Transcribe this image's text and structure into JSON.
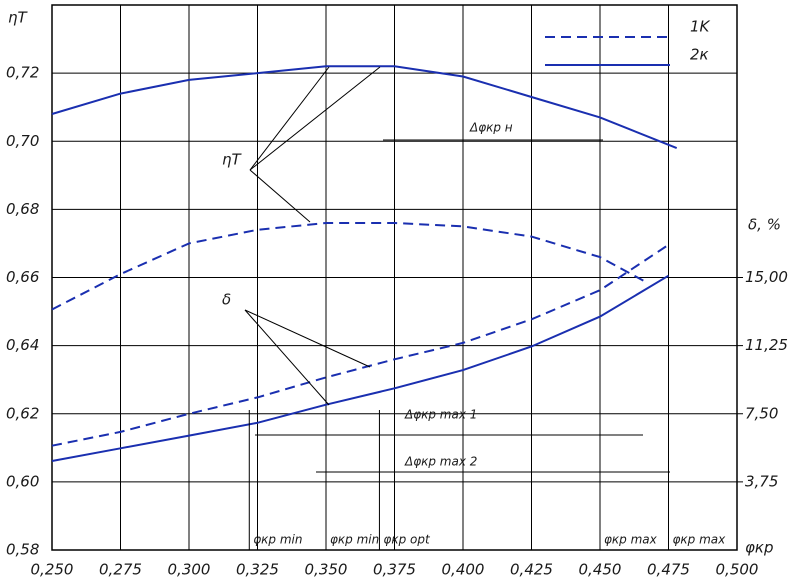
{
  "chart_data": {
    "type": "line",
    "y_title": "ηT",
    "x_title": "φкр",
    "y2_title": "δ, %",
    "xlim": [
      0.25,
      0.5
    ],
    "xticks": [
      {
        "value": 0.25,
        "label": "0,250"
      },
      {
        "value": 0.275,
        "label": "0,275"
      },
      {
        "value": 0.3,
        "label": "0,300"
      },
      {
        "value": 0.325,
        "label": "0,325"
      },
      {
        "value": 0.35,
        "label": "0,350"
      },
      {
        "value": 0.375,
        "label": "0,375"
      },
      {
        "value": 0.4,
        "label": "0,400"
      },
      {
        "value": 0.425,
        "label": "0,425"
      },
      {
        "value": 0.45,
        "label": "0,450"
      },
      {
        "value": 0.475,
        "label": "0,475"
      },
      {
        "value": 0.5,
        "label": "0,500"
      }
    ],
    "ylim": [
      0.58,
      0.74
    ],
    "yticks": [
      {
        "value": 0.58,
        "label": "0,58"
      },
      {
        "value": 0.6,
        "label": "0,60"
      },
      {
        "value": 0.62,
        "label": "0,62"
      },
      {
        "value": 0.64,
        "label": "0,64"
      },
      {
        "value": 0.66,
        "label": "0,66"
      },
      {
        "value": 0.68,
        "label": "0,68"
      },
      {
        "value": 0.7,
        "label": "0,70"
      },
      {
        "value": 0.72,
        "label": "0,72"
      }
    ],
    "y2lim": [
      0,
      30
    ],
    "y2ticks": [
      {
        "value": 3.75,
        "label": "3,75"
      },
      {
        "value": 7.5,
        "label": "7,50"
      },
      {
        "value": 11.25,
        "label": "11,25"
      },
      {
        "value": 15,
        "label": "15,00"
      }
    ],
    "grid": true,
    "series": [
      {
        "name": "1K",
        "color": "#1a2fb0",
        "dash": true,
        "x": [
          0.25,
          0.275,
          0.3,
          0.325,
          0.35,
          0.375,
          0.4,
          0.425,
          0.45,
          0.466
        ],
        "values": [
          0.6506,
          0.661,
          0.67,
          0.674,
          0.676,
          0.676,
          0.675,
          0.672,
          0.666,
          0.659
        ]
      },
      {
        "name": "2к",
        "color": "#1a2fb0",
        "dash": false,
        "x": [
          0.25,
          0.275,
          0.3,
          0.325,
          0.35,
          0.375,
          0.4,
          0.425,
          0.45,
          0.478
        ],
        "values": [
          0.708,
          0.714,
          0.718,
          0.72,
          0.722,
          0.722,
          0.719,
          0.713,
          0.707,
          0.698
        ]
      },
      {
        "color": "#1a2fb0",
        "dash": true,
        "axis": "y2",
        "x": [
          0.25,
          0.275,
          0.3,
          0.325,
          0.35,
          0.375,
          0.4,
          0.425,
          0.45,
          0.475
        ],
        "values": [
          5.74,
          6.5,
          7.5,
          8.4,
          9.5,
          10.5,
          11.4,
          12.7,
          14.3,
          16.8
        ]
      },
      {
        "color": "#1a2fb0",
        "dash": false,
        "axis": "y2",
        "x": [
          0.25,
          0.275,
          0.3,
          0.325,
          0.35,
          0.375,
          0.4,
          0.425,
          0.45,
          0.475
        ],
        "values": [
          4.9,
          5.6,
          6.3,
          7.0,
          8.0,
          8.9,
          9.9,
          11.2,
          12.85,
          15.1
        ]
      }
    ],
    "markers": [
      {
        "x": 0.322,
        "label": "φкр min"
      },
      {
        "x": 0.35,
        "label": "φкр min"
      },
      {
        "x": 0.3695,
        "label": "φкр opt"
      },
      {
        "x": 0.45,
        "label": "φкр max"
      },
      {
        "x": 0.475,
        "label": "φкр max"
      }
    ],
    "annotations": [
      "ηT",
      "δ",
      "Δφкр н",
      "Δφкр max 1",
      "Δφкр max 2"
    ]
  }
}
